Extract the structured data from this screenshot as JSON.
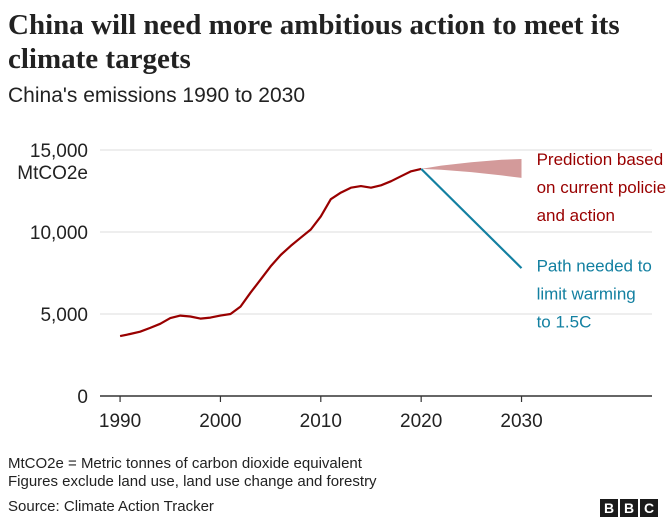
{
  "header": {
    "title": "China will need more ambitious action to meet its climate targets",
    "subtitle": "China's emissions 1990 to 2030"
  },
  "footer": {
    "note1": "MtCO2e = Metric tonnes of carbon dioxide equivalent",
    "note2": "Figures exclude land use, land use change and forestry",
    "source": "Source: Climate Action Tracker",
    "logo_letters": [
      "B",
      "B",
      "C"
    ]
  },
  "colors": {
    "emissions": "#990000",
    "pathway": "#1380a1",
    "band": "#d39a9a",
    "grid": "#dddddd",
    "axis": "#333333",
    "text": "#222222"
  },
  "chart_data": {
    "type": "line",
    "title": "China's emissions 1990 to 2030",
    "yunit": "MtCO2e",
    "xlim": [
      1988,
      2043
    ],
    "ylim": [
      0,
      15000
    ],
    "xticks": [
      1990,
      2000,
      2010,
      2020,
      2030
    ],
    "yticks": [
      0,
      5000,
      10000,
      15000
    ],
    "ytick_labels": [
      "0",
      "5,000",
      "10,000",
      "15,000"
    ],
    "grid": true,
    "series": [
      {
        "x": [
          1990,
          1991,
          1992,
          1993,
          1994,
          1995,
          1996,
          1997,
          1998,
          1999,
          2000,
          2001,
          2002,
          2003,
          2004,
          2005,
          2006,
          2007,
          2008,
          2009,
          2010,
          2011,
          2012,
          2013,
          2014,
          2015,
          2016,
          2017,
          2018,
          2019,
          2020
        ],
        "values": [
          3650,
          3780,
          3920,
          4150,
          4400,
          4750,
          4900,
          4850,
          4720,
          4780,
          4900,
          5000,
          5450,
          6300,
          7100,
          7900,
          8600,
          9150,
          9650,
          10150,
          10950,
          12000,
          12400,
          12700,
          12800,
          12700,
          12850,
          13100,
          13400,
          13700,
          13850
        ]
      },
      {
        "name": "Path needed to limit warming to 1.5C",
        "x": [
          2020,
          2030
        ],
        "values": [
          13850,
          7800
        ]
      }
    ],
    "bands": [
      {
        "name": "Prediction based on current policies and action",
        "x": [
          2020,
          2022,
          2025,
          2028,
          2030
        ],
        "upper": [
          13850,
          14050,
          14250,
          14400,
          14450
        ],
        "lower": [
          13850,
          13800,
          13650,
          13450,
          13300
        ]
      }
    ],
    "annotations": [
      {
        "lines": [
          "Prediction based",
          "on current policies",
          "and action"
        ],
        "x": 2031,
        "y": 14100,
        "color": "#990000"
      },
      {
        "lines": [
          "Path needed to",
          "limit warming",
          "to 1.5C"
        ],
        "x": 2031,
        "y": 7600,
        "color": "#1380a1"
      }
    ]
  }
}
